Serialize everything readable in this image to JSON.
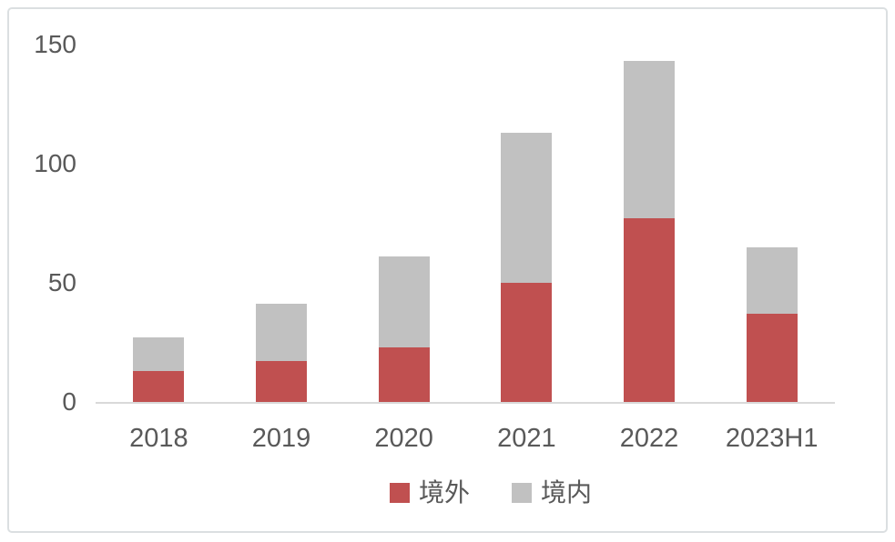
{
  "chart_data": {
    "type": "bar",
    "stacked": true,
    "title": "",
    "categories": [
      "2018",
      "2019",
      "2020",
      "2021",
      "2022",
      "2023H1"
    ],
    "series": [
      {
        "name": "境外",
        "color": "#C05050",
        "values": [
          13,
          17,
          23,
          50,
          77,
          37
        ]
      },
      {
        "name": "境内",
        "color": "#C1C1C1",
        "values": [
          14,
          24,
          38,
          63,
          66,
          28
        ]
      }
    ],
    "ylim": [
      0,
      150
    ],
    "yticks": [
      0,
      50,
      100,
      150
    ],
    "grid": false,
    "legend_position": "bottom"
  },
  "colors": {
    "series_overseas": "#C05050",
    "series_domestic": "#C1C1C1",
    "axis_line": "#D9D9D9",
    "tick_text": "#595959",
    "frame_border": "#DBDFE1",
    "background": "#FFFFFF"
  }
}
